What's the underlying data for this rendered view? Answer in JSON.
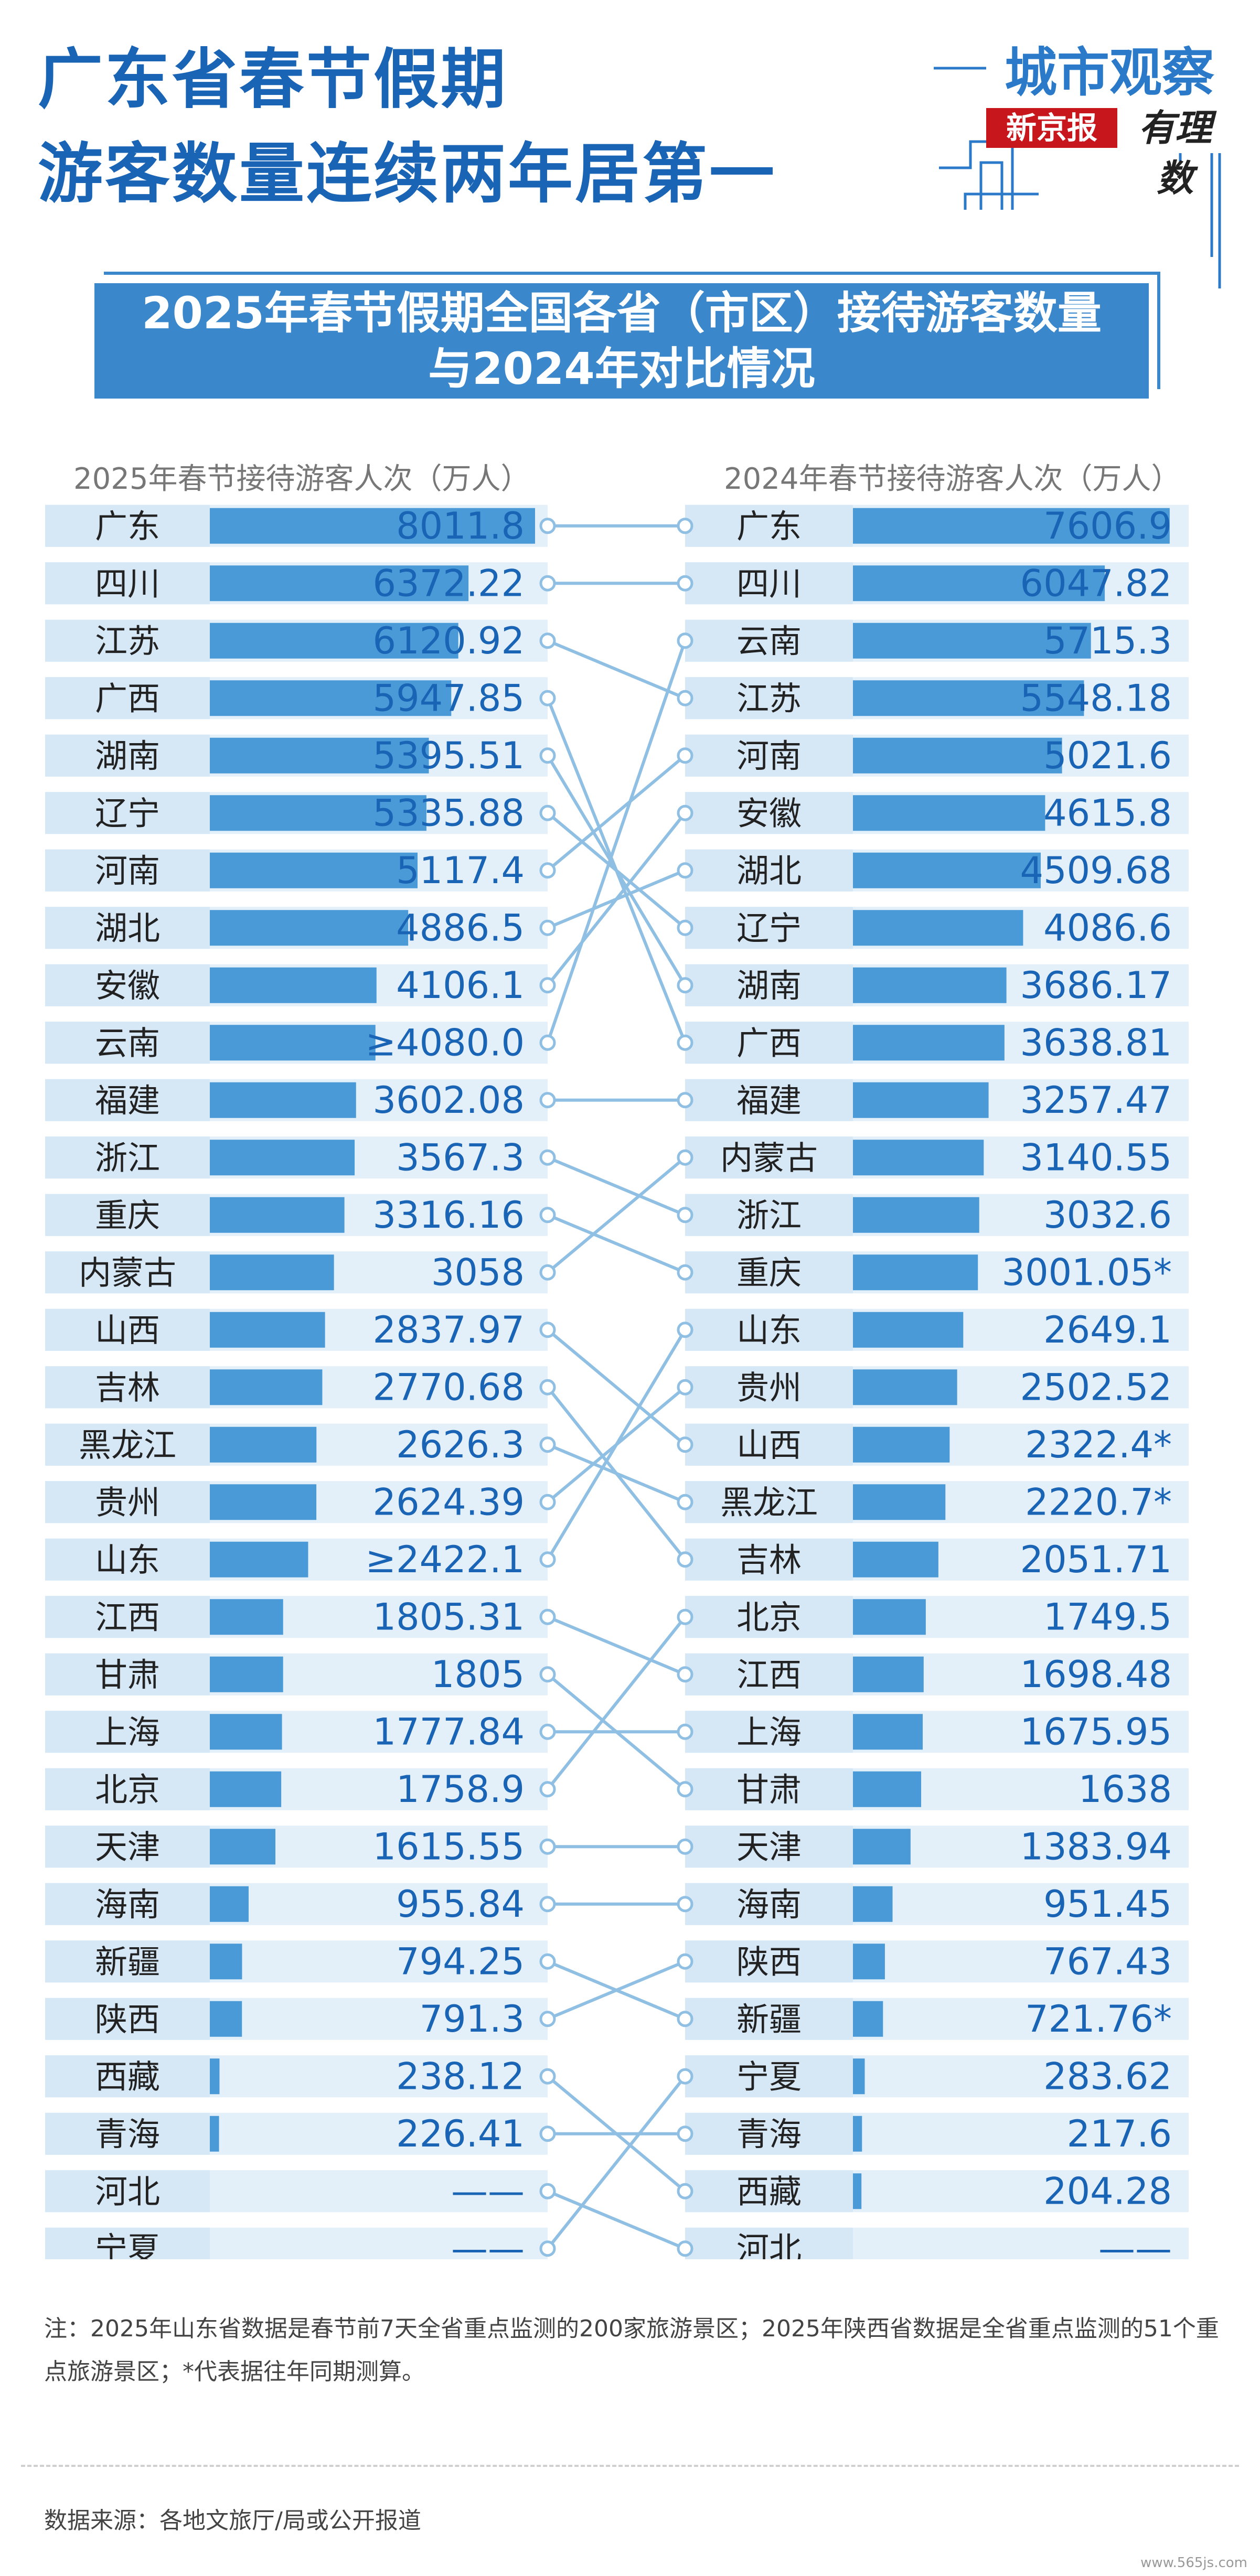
{
  "title": {
    "line1": "广东省春节假期",
    "line2": "游客数量连续两年居第一"
  },
  "brand": {
    "title": "城市观察",
    "paper": "新京报",
    "column": "有理数"
  },
  "subtitle": {
    "line1": "2025年春节假期全国各省（市区）接待游客数量",
    "line2": "与2024年对比情况"
  },
  "chart_data": {
    "type": "bar",
    "left": {
      "header": "2025年春节接待游客人次（万人）",
      "rows": [
        {
          "name": "广东",
          "label": "8011.8",
          "value": 8011.8
        },
        {
          "name": "四川",
          "label": "6372.22",
          "value": 6372.22
        },
        {
          "name": "江苏",
          "label": "6120.92",
          "value": 6120.92
        },
        {
          "name": "广西",
          "label": "5947.85",
          "value": 5947.85
        },
        {
          "name": "湖南",
          "label": "5395.51",
          "value": 5395.51
        },
        {
          "name": "辽宁",
          "label": "5335.88",
          "value": 5335.88
        },
        {
          "name": "河南",
          "label": "5117.4",
          "value": 5117.4
        },
        {
          "name": "湖北",
          "label": "4886.5",
          "value": 4886.5
        },
        {
          "name": "安徽",
          "label": "4106.1",
          "value": 4106.1
        },
        {
          "name": "云南",
          "label": "≥4080.0",
          "value": 4080.0
        },
        {
          "name": "福建",
          "label": "3602.08",
          "value": 3602.08
        },
        {
          "name": "浙江",
          "label": "3567.3",
          "value": 3567.3
        },
        {
          "name": "重庆",
          "label": "3316.16",
          "value": 3316.16
        },
        {
          "name": "内蒙古",
          "label": "3058",
          "value": 3058
        },
        {
          "name": "山西",
          "label": "2837.97",
          "value": 2837.97
        },
        {
          "name": "吉林",
          "label": "2770.68",
          "value": 2770.68
        },
        {
          "name": "黑龙江",
          "label": "2626.3",
          "value": 2626.3
        },
        {
          "name": "贵州",
          "label": "2624.39",
          "value": 2624.39
        },
        {
          "name": "山东",
          "label": "≥2422.1",
          "value": 2422.1
        },
        {
          "name": "江西",
          "label": "1805.31",
          "value": 1805.31
        },
        {
          "name": "甘肃",
          "label": "1805",
          "value": 1805
        },
        {
          "name": "上海",
          "label": "1777.84",
          "value": 1777.84
        },
        {
          "name": "北京",
          "label": "1758.9",
          "value": 1758.9
        },
        {
          "name": "天津",
          "label": "1615.55",
          "value": 1615.55
        },
        {
          "name": "海南",
          "label": "955.84",
          "value": 955.84
        },
        {
          "name": "新疆",
          "label": "794.25",
          "value": 794.25
        },
        {
          "name": "陕西",
          "label": "791.3",
          "value": 791.3
        },
        {
          "name": "西藏",
          "label": "238.12",
          "value": 238.12
        },
        {
          "name": "青海",
          "label": "226.41",
          "value": 226.41
        },
        {
          "name": "河北",
          "label": "——",
          "value": null
        },
        {
          "name": "宁夏",
          "label": "——",
          "value": null
        }
      ]
    },
    "right": {
      "header": "2024年春节接待游客人次（万人）",
      "rows": [
        {
          "name": "广东",
          "label": "7606.9",
          "value": 7606.9
        },
        {
          "name": "四川",
          "label": "6047.82",
          "value": 6047.82
        },
        {
          "name": "云南",
          "label": "5715.3",
          "value": 5715.3
        },
        {
          "name": "江苏",
          "label": "5548.18",
          "value": 5548.18
        },
        {
          "name": "河南",
          "label": "5021.6",
          "value": 5021.6
        },
        {
          "name": "安徽",
          "label": "4615.8",
          "value": 4615.8
        },
        {
          "name": "湖北",
          "label": "4509.68",
          "value": 4509.68
        },
        {
          "name": "辽宁",
          "label": "4086.6",
          "value": 4086.6
        },
        {
          "name": "湖南",
          "label": "3686.17",
          "value": 3686.17
        },
        {
          "name": "广西",
          "label": "3638.81",
          "value": 3638.81
        },
        {
          "name": "福建",
          "label": "3257.47",
          "value": 3257.47
        },
        {
          "name": "内蒙古",
          "label": "3140.55",
          "value": 3140.55
        },
        {
          "name": "浙江",
          "label": "3032.6",
          "value": 3032.6
        },
        {
          "name": "重庆",
          "label": "3001.05*",
          "value": 3001.05
        },
        {
          "name": "山东",
          "label": "2649.1",
          "value": 2649.1
        },
        {
          "name": "贵州",
          "label": "2502.52",
          "value": 2502.52
        },
        {
          "name": "山西",
          "label": "2322.4*",
          "value": 2322.4
        },
        {
          "name": "黑龙江",
          "label": "2220.7*",
          "value": 2220.7
        },
        {
          "name": "吉林",
          "label": "2051.71",
          "value": 2051.71
        },
        {
          "name": "北京",
          "label": "1749.5",
          "value": 1749.5
        },
        {
          "name": "江西",
          "label": "1698.48",
          "value": 1698.48
        },
        {
          "name": "上海",
          "label": "1675.95",
          "value": 1675.95
        },
        {
          "name": "甘肃",
          "label": "1638",
          "value": 1638
        },
        {
          "name": "天津",
          "label": "1383.94",
          "value": 1383.94
        },
        {
          "name": "海南",
          "label": "951.45",
          "value": 951.45
        },
        {
          "name": "陕西",
          "label": "767.43",
          "value": 767.43
        },
        {
          "name": "新疆",
          "label": "721.76*",
          "value": 721.76
        },
        {
          "name": "宁夏",
          "label": "283.62",
          "value": 283.62
        },
        {
          "name": "青海",
          "label": "217.6",
          "value": 217.6
        },
        {
          "name": "西藏",
          "label": "204.28",
          "value": 204.28
        },
        {
          "name": "河北",
          "label": "——",
          "value": null
        }
      ]
    },
    "colors": {
      "bar": "#4a9ad8",
      "row": "#e3eff9",
      "connector": "#8fbfe3"
    }
  },
  "footnote": "注：2025年山东省数据是春节前7天全省重点监测的200家旅游景区；2025年陕西省数据是全省重点监测的51个重点旅游景区；*代表据往年同期测算。",
  "source": "数据来源：各地文旅厅/局或公开报道",
  "watermark": "www.565js.com"
}
